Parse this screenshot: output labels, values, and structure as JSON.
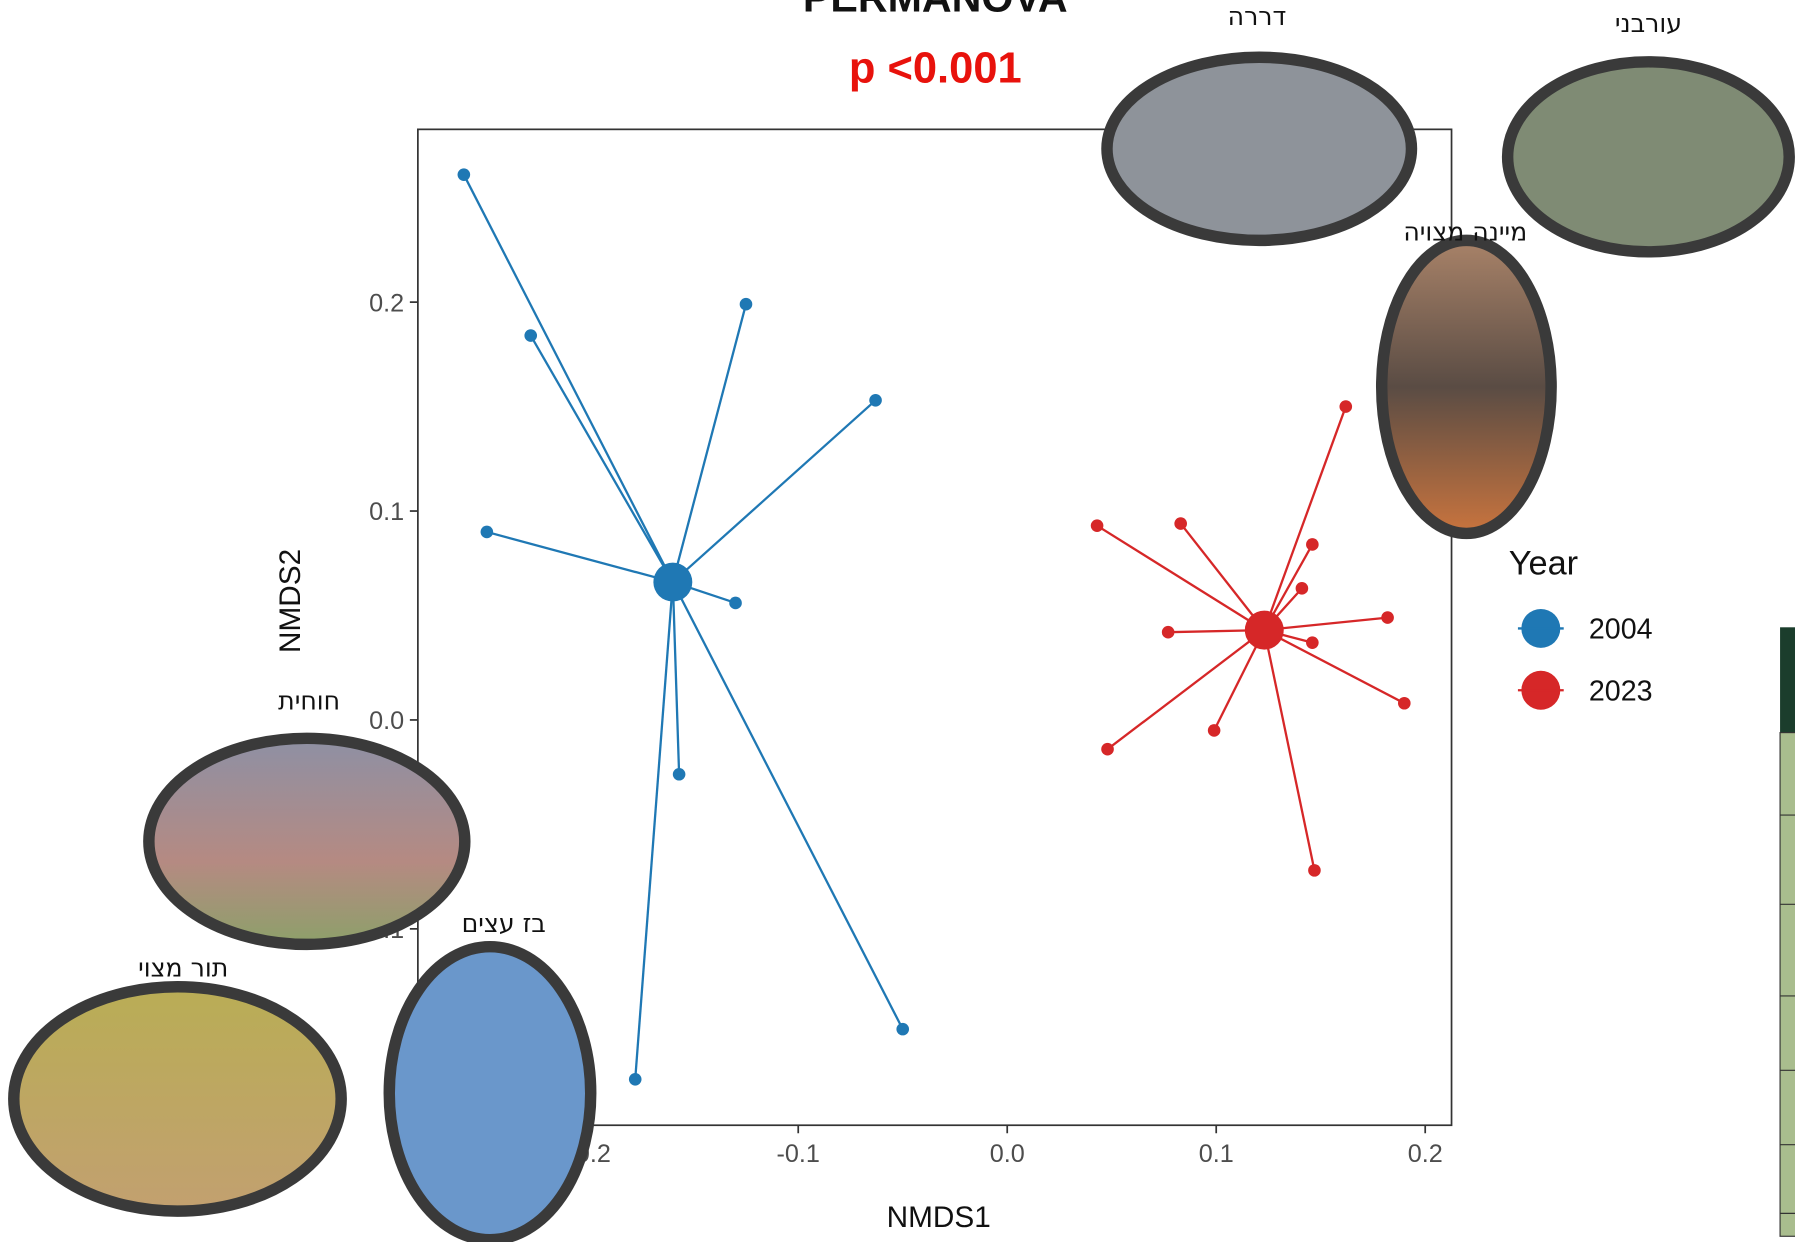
{
  "chart_data": {
    "type": "scatter",
    "title": "PERMANOVA",
    "subtitle": "p <0.001",
    "x_label": "NMDS1",
    "y_label": "NMDS2",
    "legend_title": "Year",
    "xlim": [
      -0.282,
      0.2126
    ],
    "ylim": [
      -0.194,
      0.2827
    ],
    "xticks": [
      -0.2,
      -0.1,
      {
        "value": 0,
        "label": "0.0"
      },
      0.1,
      0.2
    ],
    "yticks": [
      -0.1,
      {
        "value": 0,
        "label": "0.0"
      },
      0.1,
      0.2
    ],
    "series": [
      {
        "name": "2004",
        "color": "#1f78b4",
        "centroid": {
          "x": -0.16,
          "y": 0.066
        },
        "x": [
          -0.26,
          -0.228,
          -0.125,
          -0.063,
          -0.249,
          -0.13,
          -0.157,
          -0.05,
          -0.178
        ],
        "values": [
          0.261,
          0.184,
          0.199,
          0.153,
          0.09,
          0.056,
          -0.026,
          -0.148,
          -0.172
        ]
      },
      {
        "name": "2023",
        "color": "#d62728",
        "centroid": {
          "x": 0.123,
          "y": 0.043
        },
        "x": [
          0.162,
          0.043,
          0.083,
          0.146,
          0.141,
          0.182,
          0.077,
          0.146,
          0.19,
          0.099,
          0.048,
          0.147
        ],
        "values": [
          0.15,
          0.093,
          0.094,
          0.084,
          0.063,
          0.049,
          0.042,
          0.037,
          0.008,
          -0.005,
          -0.014,
          -0.072
        ]
      }
    ],
    "annotations": [
      "דררה",
      "עורבני",
      "מיינה מצויה",
      "חוחית",
      "תור מצוי",
      "בז עצים"
    ]
  }
}
